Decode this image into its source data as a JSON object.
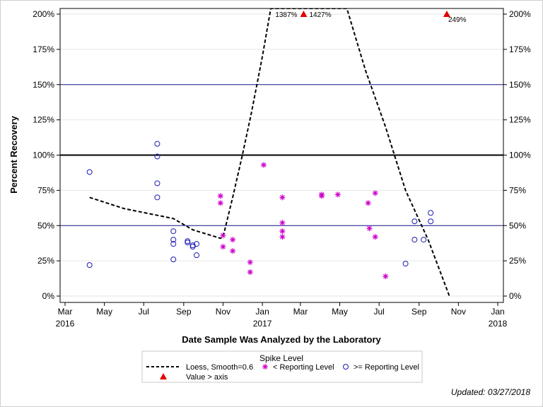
{
  "chart_data": {
    "type": "scatter",
    "xlabel": "Date Sample Was Analyzed by the Laboratory",
    "ylabel": "Percent Recovery",
    "ylim": [
      0,
      200
    ],
    "xlim": [
      "2016-03-01",
      "2018-01-01"
    ],
    "y_ticks": [
      "0%",
      "25%",
      "50%",
      "75%",
      "100%",
      "125%",
      "150%",
      "175%",
      "200%"
    ],
    "y_tick_values": [
      0,
      25,
      50,
      75,
      100,
      125,
      150,
      175,
      200
    ],
    "x_ticks": [
      {
        "date": "2016-03-01",
        "label": "Mar",
        "year": "2016"
      },
      {
        "date": "2016-05-01",
        "label": "May",
        "year": ""
      },
      {
        "date": "2016-07-01",
        "label": "Jul",
        "year": ""
      },
      {
        "date": "2016-09-01",
        "label": "Sep",
        "year": ""
      },
      {
        "date": "2016-11-01",
        "label": "Nov",
        "year": ""
      },
      {
        "date": "2017-01-01",
        "label": "Jan",
        "year": "2017"
      },
      {
        "date": "2017-03-01",
        "label": "Mar",
        "year": ""
      },
      {
        "date": "2017-05-01",
        "label": "May",
        "year": ""
      },
      {
        "date": "2017-07-01",
        "label": "Jul",
        "year": ""
      },
      {
        "date": "2017-09-01",
        "label": "Sep",
        "year": ""
      },
      {
        "date": "2017-11-01",
        "label": "Nov",
        "year": ""
      },
      {
        "date": "2018-01-01",
        "label": "Jan",
        "year": "2018"
      }
    ],
    "reference_lines": [
      {
        "y": 50,
        "color": "#1a1a8c",
        "width": 1
      },
      {
        "y": 100,
        "color": "#000000",
        "width": 2
      },
      {
        "y": 150,
        "color": "#1a1a8c",
        "width": 1
      }
    ],
    "grid": "horizontal",
    "series": [
      {
        "name": ">= Reporting Level",
        "marker": "circle",
        "color": "#1a1ab4",
        "points": [
          {
            "x": "2016-04-08",
            "y": 88
          },
          {
            "x": "2016-04-08",
            "y": 22
          },
          {
            "x": "2016-07-22",
            "y": 108
          },
          {
            "x": "2016-07-22",
            "y": 99
          },
          {
            "x": "2016-07-22",
            "y": 80
          },
          {
            "x": "2016-07-22",
            "y": 70
          },
          {
            "x": "2016-08-16",
            "y": 46
          },
          {
            "x": "2016-08-16",
            "y": 40
          },
          {
            "x": "2016-08-16",
            "y": 37
          },
          {
            "x": "2016-08-16",
            "y": 26
          },
          {
            "x": "2016-09-07",
            "y": 39
          },
          {
            "x": "2016-09-07",
            "y": 38
          },
          {
            "x": "2016-09-15",
            "y": 36
          },
          {
            "x": "2016-09-15",
            "y": 35
          },
          {
            "x": "2016-09-21",
            "y": 37
          },
          {
            "x": "2016-09-21",
            "y": 29
          },
          {
            "x": "2017-08-11",
            "y": 23
          },
          {
            "x": "2017-08-25",
            "y": 53
          },
          {
            "x": "2017-08-25",
            "y": 40
          },
          {
            "x": "2017-09-08",
            "y": 40
          },
          {
            "x": "2017-09-19",
            "y": 59
          },
          {
            "x": "2017-09-19",
            "y": 53
          }
        ]
      },
      {
        "name": "< Reporting Level",
        "marker": "asterisk",
        "color": "#cc00cc",
        "points": [
          {
            "x": "2016-10-28",
            "y": 71
          },
          {
            "x": "2016-10-28",
            "y": 66
          },
          {
            "x": "2016-11-01",
            "y": 43
          },
          {
            "x": "2016-11-01",
            "y": 35
          },
          {
            "x": "2016-11-16",
            "y": 40
          },
          {
            "x": "2016-11-16",
            "y": 32
          },
          {
            "x": "2016-12-13",
            "y": 24
          },
          {
            "x": "2016-12-13",
            "y": 17
          },
          {
            "x": "2017-01-03",
            "y": 93
          },
          {
            "x": "2017-02-01",
            "y": 70
          },
          {
            "x": "2017-02-01",
            "y": 52
          },
          {
            "x": "2017-02-01",
            "y": 46
          },
          {
            "x": "2017-02-01",
            "y": 42
          },
          {
            "x": "2017-04-03",
            "y": 72
          },
          {
            "x": "2017-04-03",
            "y": 71
          },
          {
            "x": "2017-04-28",
            "y": 72
          },
          {
            "x": "2017-06-14",
            "y": 66
          },
          {
            "x": "2017-06-16",
            "y": 48
          },
          {
            "x": "2017-06-25",
            "y": 73
          },
          {
            "x": "2017-06-25",
            "y": 42
          },
          {
            "x": "2017-07-11",
            "y": 14
          }
        ]
      },
      {
        "name": "Loess, Smooth=0.6",
        "marker": "dashed-line",
        "color": "#000000",
        "points": [
          {
            "x": "2016-04-08",
            "y": 70
          },
          {
            "x": "2016-06-01",
            "y": 62
          },
          {
            "x": "2016-08-16",
            "y": 55
          },
          {
            "x": "2016-09-15",
            "y": 47
          },
          {
            "x": "2016-10-28",
            "y": 41
          },
          {
            "x": "2016-11-01",
            "y": 42
          },
          {
            "x": "2016-11-16",
            "y": 70
          },
          {
            "x": "2016-12-01",
            "y": 100
          },
          {
            "x": "2016-12-15",
            "y": 130
          },
          {
            "x": "2017-01-01",
            "y": 170
          },
          {
            "x": "2017-01-14",
            "y": 204
          },
          {
            "x": "2017-05-12",
            "y": 204
          },
          {
            "x": "2017-06-10",
            "y": 160
          },
          {
            "x": "2017-07-11",
            "y": 120
          },
          {
            "x": "2017-08-11",
            "y": 75
          },
          {
            "x": "2017-09-15",
            "y": 40
          },
          {
            "x": "2017-10-18",
            "y": 0
          }
        ]
      },
      {
        "name": "Value > axis",
        "marker": "triangle",
        "color": "#e00000",
        "points": [
          {
            "x": "2017-03-06",
            "y": 200,
            "label": "1387%"
          },
          {
            "x": "2017-03-06",
            "y": 200,
            "label": "1427%"
          },
          {
            "x": "2017-10-14",
            "y": 200,
            "label": "249%"
          }
        ]
      }
    ]
  },
  "legend": {
    "title": "Spike Level",
    "items": [
      {
        "key": "loess",
        "label": "Loess, Smooth=0.6"
      },
      {
        "key": "lt",
        "label": "< Reporting Level"
      },
      {
        "key": "ge",
        "label": ">= Reporting Level"
      },
      {
        "key": "tri",
        "label": "Value > axis"
      }
    ]
  },
  "footer": {
    "updated": "Updated: 03/27/2018"
  }
}
